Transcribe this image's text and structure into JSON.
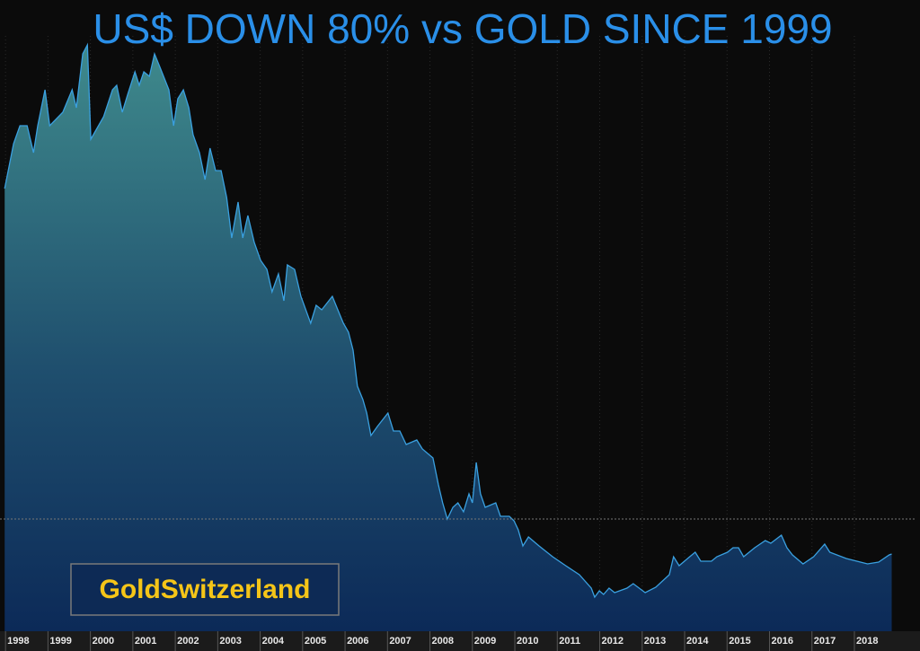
{
  "chart_data": {
    "type": "area",
    "title": "US$  DOWN  80%  vs  GOLD  SINCE 1999",
    "annotation": "GoldSwitzerland",
    "x": [
      1997.98,
      1998.19,
      1998.34,
      1998.51,
      1998.66,
      1998.76,
      1998.93,
      1999.04,
      1999.35,
      1999.57,
      1999.67,
      1999.82,
      1999.93,
      2000.01,
      2000.31,
      2000.52,
      2000.62,
      2000.75,
      2000.88,
      2001.05,
      2001.15,
      2001.26,
      2001.39,
      2001.51,
      2001.64,
      2001.85,
      2001.96,
      2002.06,
      2002.19,
      2002.32,
      2002.42,
      2002.57,
      2002.7,
      2002.82,
      2002.95,
      2003.08,
      2003.21,
      2003.33,
      2003.48,
      2003.59,
      2003.71,
      2003.86,
      2004.01,
      2004.16,
      2004.28,
      2004.43,
      2004.56,
      2004.64,
      2004.81,
      2004.96,
      2005.19,
      2005.32,
      2005.45,
      2005.7,
      2005.83,
      2005.96,
      2006.08,
      2006.19,
      2006.29,
      2006.42,
      2006.51,
      2006.61,
      2006.76,
      2007.01,
      2007.14,
      2007.29,
      2007.44,
      2007.69,
      2007.82,
      2008.07,
      2008.2,
      2008.3,
      2008.41,
      2008.54,
      2008.66,
      2008.79,
      2008.92,
      2009.0,
      2009.09,
      2009.19,
      2009.3,
      2009.55,
      2009.66,
      2009.87,
      2009.98,
      2010.08,
      2010.19,
      2010.32,
      2010.57,
      2010.89,
      2011.2,
      2011.52,
      2011.8,
      2011.88,
      2011.99,
      2012.09,
      2012.22,
      2012.35,
      2012.64,
      2012.79,
      2013.07,
      2013.32,
      2013.64,
      2013.74,
      2013.87,
      2014.12,
      2014.25,
      2014.38,
      2014.63,
      2014.76,
      2015.01,
      2015.14,
      2015.27,
      2015.39,
      2015.65,
      2015.9,
      2016.03,
      2016.28,
      2016.41,
      2016.54,
      2016.79,
      2017.04,
      2017.3,
      2017.42,
      2017.81,
      2018.06,
      2018.31,
      2018.57,
      2018.82,
      2018.88
    ],
    "values": [
      493,
      543,
      563,
      563,
      533,
      563,
      603,
      563,
      578,
      603,
      583,
      643,
      653,
      548,
      573,
      603,
      608,
      578,
      598,
      623,
      608,
      623,
      618,
      643,
      628,
      603,
      563,
      593,
      603,
      583,
      553,
      533,
      503,
      538,
      513,
      513,
      483,
      438,
      478,
      438,
      463,
      433,
      413,
      403,
      378,
      398,
      368,
      408,
      403,
      373,
      343,
      363,
      358,
      373,
      358,
      343,
      333,
      313,
      273,
      258,
      243,
      218,
      228,
      243,
      223,
      223,
      208,
      213,
      203,
      193,
      163,
      143,
      125,
      138,
      143,
      133,
      153,
      143,
      188,
      153,
      138,
      143,
      128,
      128,
      123,
      113,
      95,
      105,
      95,
      83,
      73,
      63,
      48,
      38,
      45,
      41,
      48,
      43,
      48,
      53,
      43,
      49,
      63,
      83,
      73,
      83,
      88,
      78,
      78,
      83,
      88,
      93,
      93,
      83,
      93,
      101,
      98,
      107,
      93,
      85,
      75,
      83,
      97,
      88,
      81,
      78,
      75,
      77,
      85,
      86
    ],
    "reference_line": 125,
    "xlim": [
      1997.87,
      2019.44
    ],
    "ylim": [
      0,
      663
    ],
    "xticks": [
      1998,
      1999,
      2000,
      2001,
      2002,
      2003,
      2004,
      2005,
      2006,
      2007,
      2008,
      2009,
      2010,
      2011,
      2012,
      2013,
      2014,
      2015,
      2016,
      2017,
      2018
    ],
    "grid": true,
    "color": "#3aa0e0"
  }
}
